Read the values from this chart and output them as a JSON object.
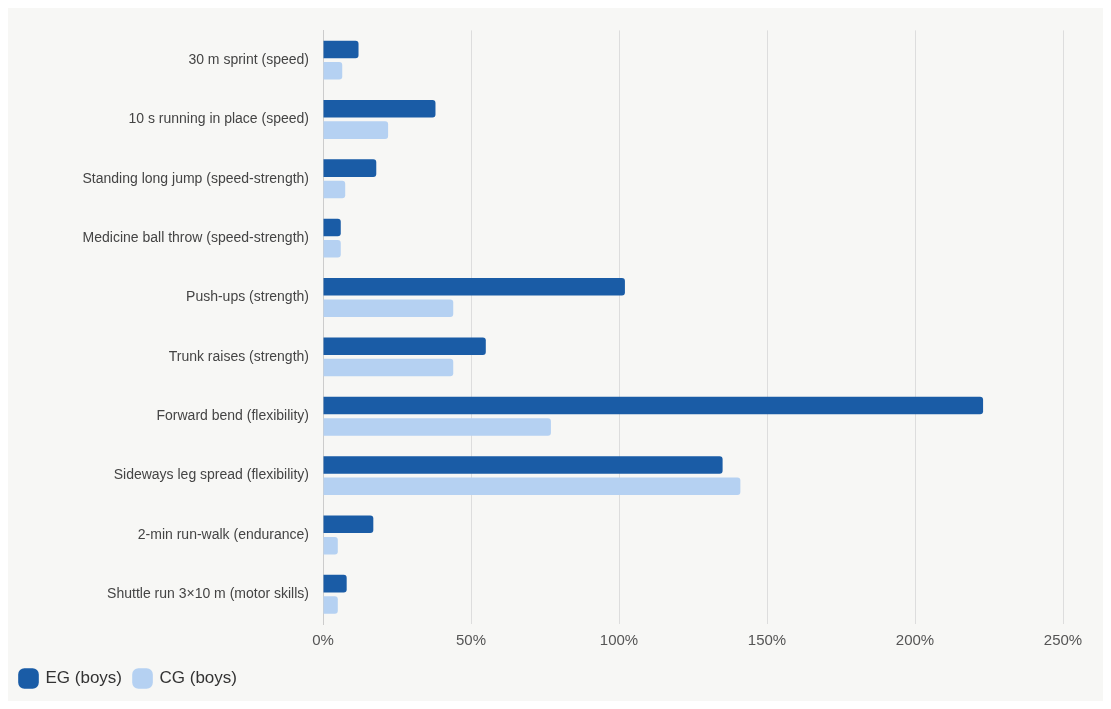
{
  "chart_data": {
    "type": "bar",
    "orientation": "horizontal",
    "categories": [
      "30 m sprint (speed)",
      "10 s running in place (speed)",
      "Standing long jump (speed-strength)",
      "Medicine ball throw (speed-strength)",
      "Push-ups (strength)",
      "Trunk raises (strength)",
      "Forward bend (flexibility)",
      "Sideways leg spread (flexibility)",
      "2-min run-walk (endurance)",
      "Shuttle run 3×10 m (motor skills)"
    ],
    "series": [
      {
        "name": "EG (boys)",
        "color": "#1a5ca6",
        "values": [
          12,
          38,
          18,
          6,
          102,
          55,
          223,
          135,
          17,
          8
        ]
      },
      {
        "name": "CG (boys)",
        "color": "#b5d1f2",
        "values": [
          6.5,
          22,
          7.5,
          6,
          44,
          44,
          77,
          141,
          5,
          5
        ]
      }
    ],
    "xlim": [
      0,
      250
    ],
    "xticks": [
      {
        "value": 0,
        "label": "0%"
      },
      {
        "value": 50,
        "label": "50%"
      },
      {
        "value": 100,
        "label": "100%"
      },
      {
        "value": 150,
        "label": "150%"
      },
      {
        "value": 200,
        "label": "200%"
      },
      {
        "value": 250,
        "label": "250%"
      }
    ],
    "grid": "x",
    "legend": "bottom left"
  }
}
